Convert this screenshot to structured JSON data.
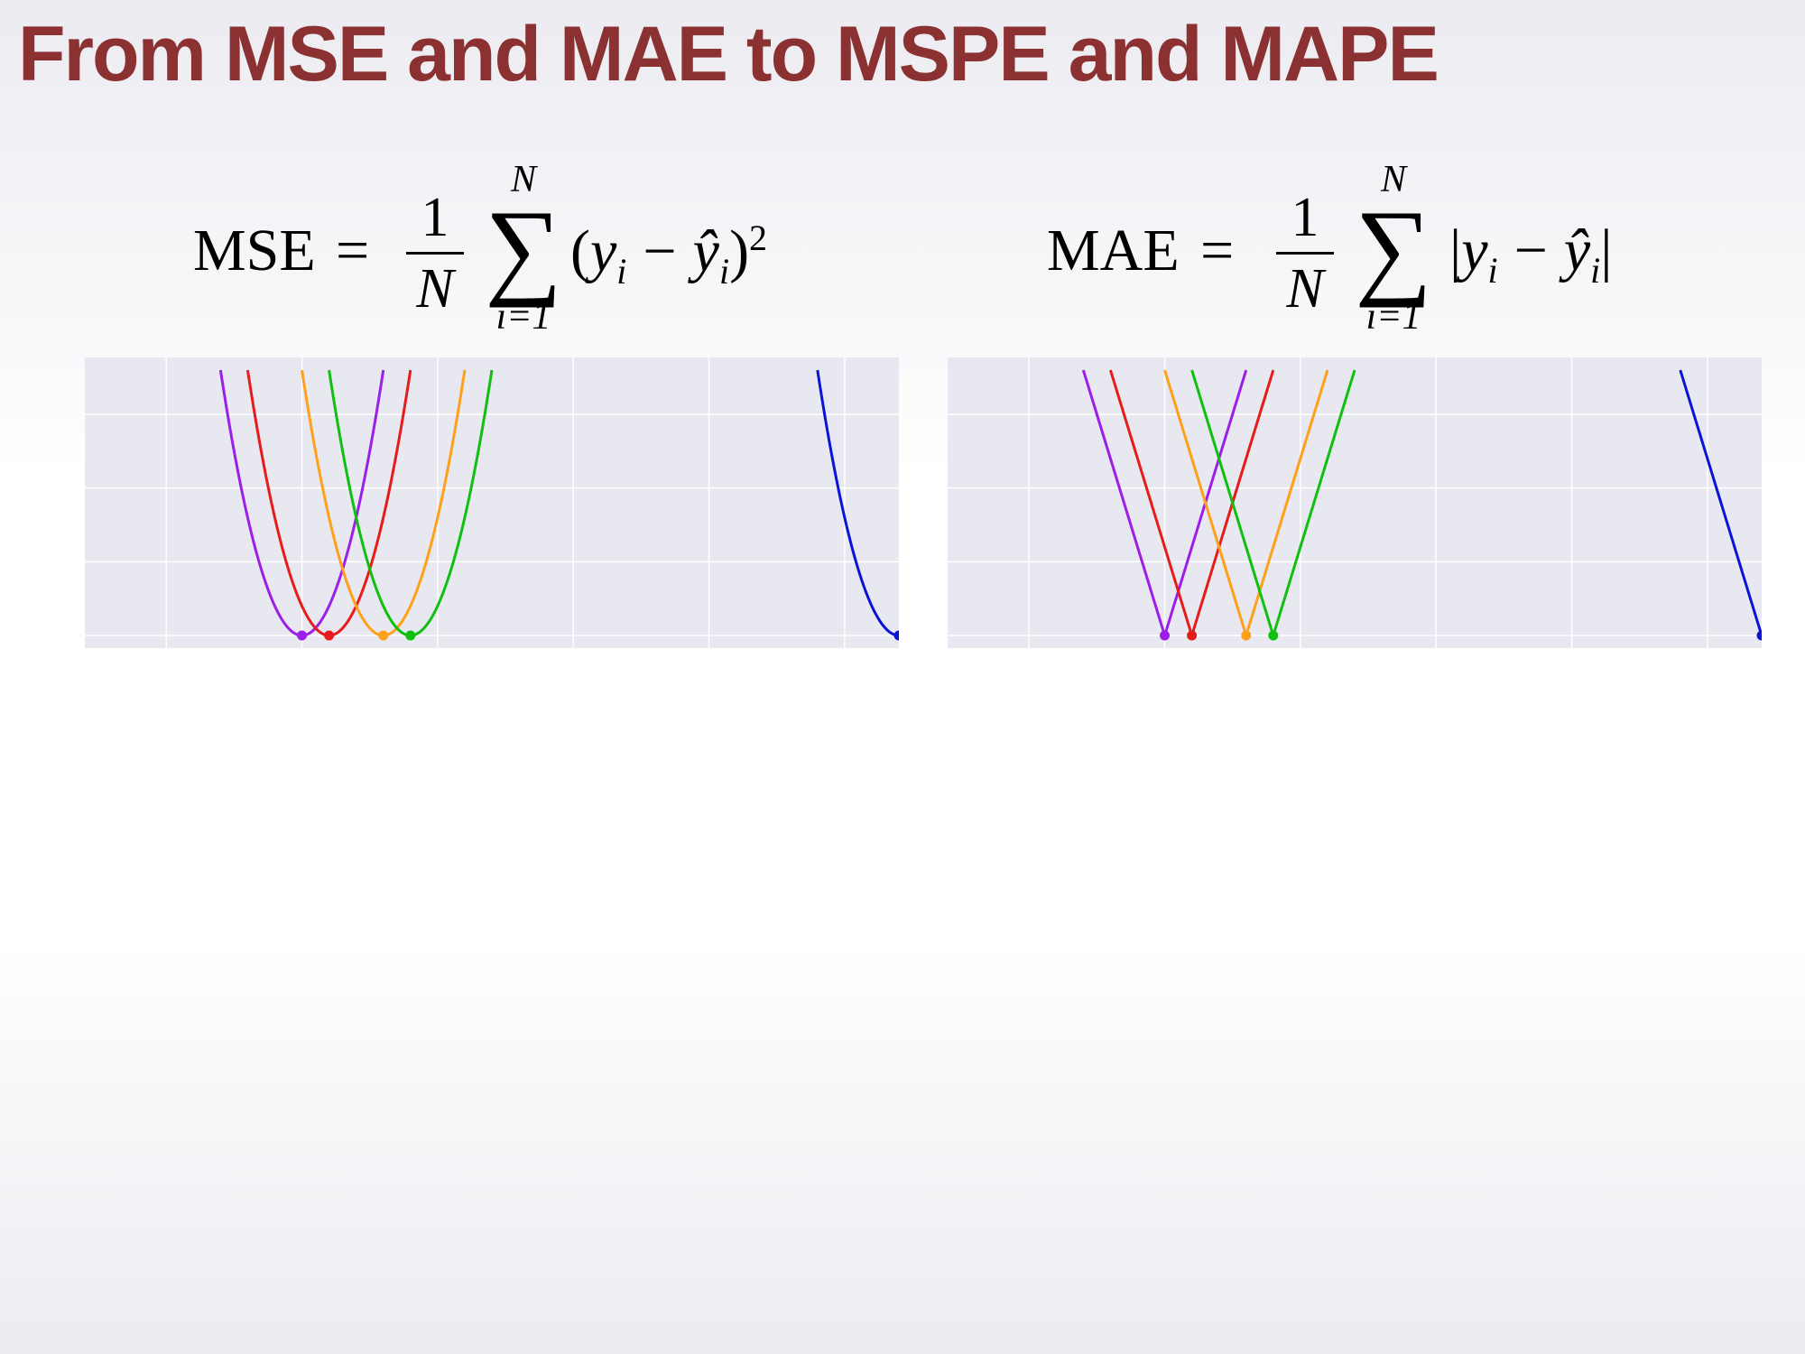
{
  "slide": {
    "title": "From MSE and MAE to MSPE and MAPE",
    "title_color": "#8b3132"
  },
  "formulas": {
    "mse": {
      "lhs": "MSE",
      "eq": "=",
      "frac_num": "1",
      "frac_den": "N",
      "sum_upper": "N",
      "sum_symbol": "∑",
      "sum_lower": "i=1",
      "body_open": "(",
      "y": "y",
      "y_sub": "i",
      "minus": "−",
      "yhat": "ŷ",
      "yhat_sub": "i",
      "body_close": ")",
      "power": "2"
    },
    "mae": {
      "lhs": "MAE",
      "eq": "=",
      "frac_num": "1",
      "frac_den": "N",
      "sum_upper": "N",
      "sum_symbol": "∑",
      "sum_lower": "i=1",
      "body_open": "|",
      "y": "y",
      "y_sub": "i",
      "minus": "−",
      "yhat": "ŷ",
      "yhat_sub": "i",
      "body_close": "|"
    }
  },
  "chart_data": [
    {
      "type": "line",
      "loss": "squared",
      "xlim": [
        -8,
        22
      ],
      "ylim": [
        0,
        30
      ],
      "grid": true,
      "background": "#e8e8f0",
      "grid_color": "#ffffff",
      "series": [
        {
          "color": "#9b1fe8",
          "minimum_x": 0.0,
          "curve_x_range": [
            -3,
            3
          ]
        },
        {
          "color": "#e81b1b",
          "minimum_x": 1.0,
          "curve_x_range": [
            -2,
            4
          ]
        },
        {
          "color": "#ffa01a",
          "minimum_x": 3.0,
          "curve_x_range": [
            0,
            6
          ]
        },
        {
          "color": "#10c010",
          "minimum_x": 4.0,
          "curve_x_range": [
            1,
            7
          ]
        },
        {
          "color": "#0a14d8",
          "minimum_x": 22.0,
          "curve_x_range": [
            19,
            25
          ]
        }
      ]
    },
    {
      "type": "line",
      "loss": "absolute",
      "xlim": [
        -8,
        22
      ],
      "ylim": [
        0,
        30
      ],
      "grid": true,
      "background": "#e8e8f0",
      "grid_color": "#ffffff",
      "series": [
        {
          "color": "#9b1fe8",
          "minimum_x": 0.0,
          "curve_x_range": [
            -3,
            3
          ]
        },
        {
          "color": "#e81b1b",
          "minimum_x": 1.0,
          "curve_x_range": [
            -2,
            4
          ]
        },
        {
          "color": "#ffa01a",
          "minimum_x": 3.0,
          "curve_x_range": [
            0,
            6
          ]
        },
        {
          "color": "#10c010",
          "minimum_x": 4.0,
          "curve_x_range": [
            1,
            7
          ]
        },
        {
          "color": "#0a14d8",
          "minimum_x": 22.0,
          "curve_x_range": [
            19,
            25
          ]
        }
      ]
    }
  ]
}
